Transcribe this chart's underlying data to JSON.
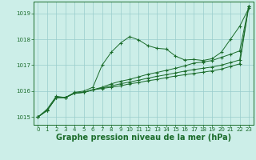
{
  "title": "Graphe pression niveau de la mer (hPa)",
  "bg_color": "#cceee8",
  "grid_color": "#99cccc",
  "line_color": "#1a6b2a",
  "xlim": [
    -0.5,
    23.5
  ],
  "ylim": [
    1014.7,
    1019.45
  ],
  "yticks": [
    1015,
    1016,
    1017,
    1018,
    1019
  ],
  "xticks": [
    0,
    1,
    2,
    3,
    4,
    5,
    6,
    7,
    8,
    9,
    10,
    11,
    12,
    13,
    14,
    15,
    16,
    17,
    18,
    19,
    20,
    21,
    22,
    23
  ],
  "lines": [
    [
      1015.0,
      1015.3,
      1015.8,
      1015.75,
      1015.95,
      1016.0,
      1016.15,
      1017.0,
      1017.5,
      1017.85,
      1018.1,
      1017.97,
      1017.75,
      1017.65,
      1017.62,
      1017.35,
      1017.2,
      1017.22,
      1017.18,
      1017.25,
      1017.5,
      1018.0,
      1018.5,
      1019.2
    ],
    [
      1015.0,
      1015.25,
      1015.75,
      1015.75,
      1015.92,
      1015.95,
      1016.05,
      1016.15,
      1016.28,
      1016.38,
      1016.45,
      1016.55,
      1016.65,
      1016.72,
      1016.8,
      1016.88,
      1016.97,
      1017.08,
      1017.12,
      1017.18,
      1017.3,
      1017.42,
      1017.55,
      1019.28
    ],
    [
      1015.0,
      1015.25,
      1015.75,
      1015.75,
      1015.92,
      1015.95,
      1016.05,
      1016.12,
      1016.2,
      1016.28,
      1016.35,
      1016.42,
      1016.5,
      1016.57,
      1016.63,
      1016.7,
      1016.77,
      1016.83,
      1016.88,
      1016.93,
      1017.0,
      1017.1,
      1017.2,
      1019.28
    ],
    [
      1015.0,
      1015.25,
      1015.75,
      1015.75,
      1015.92,
      1015.95,
      1016.05,
      1016.1,
      1016.15,
      1016.2,
      1016.28,
      1016.33,
      1016.4,
      1016.45,
      1016.52,
      1016.58,
      1016.63,
      1016.68,
      1016.73,
      1016.78,
      1016.85,
      1016.95,
      1017.05,
      1019.28
    ]
  ],
  "ylabel_fontsize": 5.5,
  "xlabel_fontsize": 7.0,
  "tick_fontsize": 5.0
}
